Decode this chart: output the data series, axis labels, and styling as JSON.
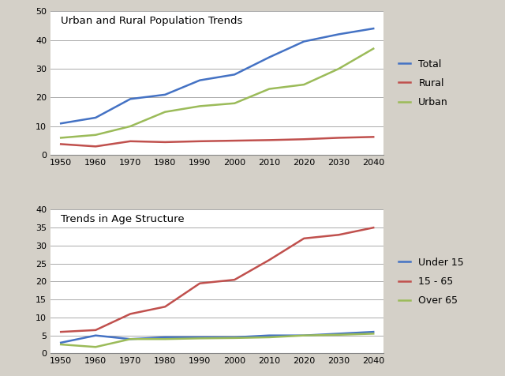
{
  "years": [
    1950,
    1960,
    1970,
    1980,
    1990,
    2000,
    2010,
    2020,
    2030,
    2040
  ],
  "chart1_title": "Urban and Rural Population Trends",
  "total": [
    11,
    13,
    19.5,
    21,
    26,
    28,
    34,
    39.5,
    42,
    44
  ],
  "rural": [
    3.8,
    3.0,
    4.8,
    4.5,
    4.8,
    5.0,
    5.2,
    5.5,
    6.0,
    6.3
  ],
  "urban": [
    6.0,
    7.0,
    10,
    15,
    17,
    18,
    23,
    24.5,
    30,
    37
  ],
  "total_color": "#4472C4",
  "rural_color": "#C0504D",
  "urban_color": "#9BBB59",
  "chart1_ylim": [
    0,
    50
  ],
  "chart1_yticks": [
    0,
    10,
    20,
    30,
    40,
    50
  ],
  "chart2_title": "Trends in Age Structure",
  "under15": [
    3.0,
    5.0,
    4.0,
    4.5,
    4.5,
    4.5,
    5.0,
    5.0,
    5.5,
    6.0
  ],
  "age1565": [
    6.0,
    6.5,
    11,
    13,
    19.5,
    20.5,
    26,
    32,
    33,
    35
  ],
  "over65": [
    2.5,
    1.8,
    4.0,
    4.0,
    4.2,
    4.3,
    4.5,
    5.0,
    5.2,
    5.5
  ],
  "under15_color": "#4472C4",
  "age1565_color": "#C0504D",
  "over65_color": "#9BBB59",
  "chart2_ylim": [
    0,
    40
  ],
  "chart2_yticks": [
    0,
    5,
    10,
    15,
    20,
    25,
    30,
    35,
    40
  ],
  "legend1_labels": [
    "Total",
    "Rural",
    "Urban"
  ],
  "legend2_labels": [
    "Under 15",
    "15 - 65",
    "Over 65"
  ],
  "bg_color": "#D4D0C8",
  "plot_bg_color": "#FFFFFF",
  "grid_color": "#AAAAAA",
  "line_width": 1.8
}
